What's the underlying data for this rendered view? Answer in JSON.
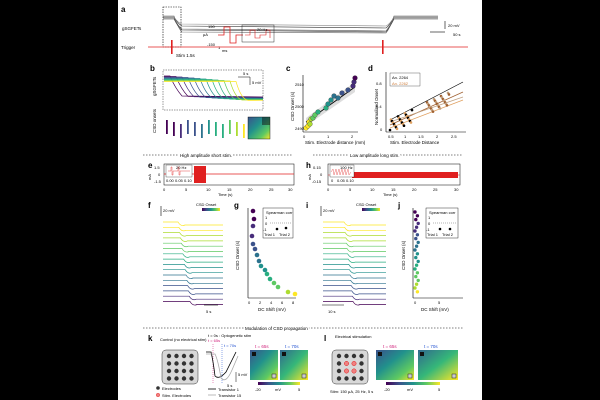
{
  "panel_letters": {
    "a": "a",
    "b": "b",
    "c": "c",
    "d": "d",
    "e": "e",
    "f": "f",
    "g": "g",
    "h": "h",
    "i": "i",
    "j": "j",
    "k": "k",
    "l": "l"
  },
  "panel_a": {
    "row_label": "gSGFETs",
    "trigger_label": "Trigger",
    "stim_label": "Stim 1.5s",
    "scale_mv": "20 mV",
    "scale_s": "50 s",
    "inset_freq": "20 Hz",
    "inset_ua": "μA",
    "inset_hi": "150",
    "inset_lo": "-150",
    "inset_ms": "ms",
    "inset_one": "1"
  },
  "panel_b": {
    "gsgfets_label": "gSGFETs",
    "csd_onsets_label": "CSD onsets",
    "scale_s": "5 s",
    "scale_mv": "5 mV"
  },
  "panel_c": {
    "ylabel": "CSD Onset (s)",
    "xlabel": "Stim. Electrode distance (mm)",
    "yticks": [
      "2490",
      "2500",
      "2510"
    ],
    "xticks": [
      "0",
      "1",
      "2"
    ]
  },
  "panel_d": {
    "ylabel": "Normalized Onset",
    "xlabel": "Stim. Electrode Distance",
    "legend": [
      "An. 2264",
      "An. 2262"
    ],
    "xticks": [
      "0.5",
      "1",
      "1.5",
      "2",
      "2.5"
    ],
    "yticks": [
      "0",
      "0.4",
      "0.8"
    ]
  },
  "mid_titles": {
    "left": "High amplitude short stim.",
    "right": "Low amplitude long stim."
  },
  "panel_e": {
    "ylabel": "mA",
    "yticks": [
      "1.5",
      "0",
      "-1.5"
    ],
    "xticks": [
      "0",
      "5",
      "10",
      "15",
      "20",
      "25",
      "30"
    ],
    "inset_xticks": [
      "0.00",
      "0.05",
      "0.10"
    ],
    "inset_freq": "20 Hz",
    "xlabel": "Time (s)"
  },
  "panel_h": {
    "ylabel": "mA",
    "yticks": [
      "0.15",
      "0",
      "-0.15"
    ],
    "xticks": [
      "0",
      "5",
      "10",
      "15",
      "20",
      "25",
      "30"
    ],
    "inset_xticks": [
      "0",
      "0.05",
      "0.10"
    ],
    "inset_freq": "100 Hz",
    "xlabel": "Time (s)"
  },
  "panel_f": {
    "scale_mv": "20 mV",
    "legend": "CSD Onset",
    "scale_s": "5 s"
  },
  "panel_g": {
    "ylabel": "CSD Onset (s)",
    "xlabel": "DC Shift (mV)",
    "inset_title": "Spearman corr",
    "inset_yticks": [
      "1",
      "0",
      "-1"
    ],
    "inset_xticks": [
      "Trial 1",
      "Trial 2"
    ],
    "xticks": [
      "0",
      "2",
      "4",
      "6",
      "8"
    ]
  },
  "panel_i": {
    "scale_mv": "20 mV",
    "legend": "CSD Onset",
    "scale_s": "10 s"
  },
  "panel_j": {
    "ylabel": "CSD Onset (s)",
    "xlabel": "DC Shift (mV)",
    "inset_title": "Spearman corr",
    "inset_yticks": [
      "1",
      "0",
      "-1"
    ],
    "inset_xticks": [
      "Trial 1",
      "Trial 2"
    ],
    "xticks": [
      "0",
      "5"
    ]
  },
  "modulation_title": "Modulation of CSD propagation",
  "panel_k": {
    "control_label": "Control (no electrical stim)",
    "t0_label": "t = 0s : Optogenetic stim",
    "t65": "t = 65s",
    "t70": "t = 70s",
    "legend": [
      "Electrodes",
      "Stim. Electrodes"
    ],
    "transistors": [
      "Transistor 1",
      "Transistor 15"
    ],
    "scale_s": "5 s",
    "scale_mv": "5 mV",
    "cbar_ticks": [
      "-20",
      "mV",
      "5"
    ]
  },
  "panel_l": {
    "title": "Electrical stimulation",
    "t65": "t = 65s",
    "t70": "t = 70s",
    "stim_desc": "Stim: 150 μA, 25 Hz, 5 s",
    "cbar_ticks": [
      "-20",
      "mV",
      "5"
    ]
  }
}
